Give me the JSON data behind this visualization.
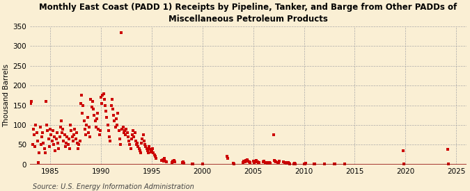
{
  "title": "Monthly East Coast (PADD 1) Receipts by Pipeline, Tanker, and Barge from Other PADDs of\nMiscellaneous Petroleum Products",
  "ylabel": "Thousand Barrels",
  "source": "Source: U.S. Energy Information Administration",
  "background_color": "#faefd4",
  "dot_color": "#cc0000",
  "xlim": [
    1983,
    2026
  ],
  "ylim": [
    0,
    350
  ],
  "yticks": [
    0,
    50,
    100,
    150,
    200,
    250,
    300,
    350
  ],
  "xticks": [
    1985,
    1990,
    1995,
    2000,
    2005,
    2010,
    2015,
    2020,
    2025
  ],
  "data": [
    [
      1983.08,
      155
    ],
    [
      1983.17,
      160
    ],
    [
      1983.25,
      50
    ],
    [
      1983.33,
      90
    ],
    [
      1983.42,
      75
    ],
    [
      1983.5,
      45
    ],
    [
      1983.58,
      100
    ],
    [
      1983.67,
      80
    ],
    [
      1983.75,
      60
    ],
    [
      1983.83,
      5
    ],
    [
      1983.92,
      30
    ],
    [
      1984.0,
      95
    ],
    [
      1984.08,
      50
    ],
    [
      1984.17,
      70
    ],
    [
      1984.25,
      80
    ],
    [
      1984.33,
      55
    ],
    [
      1984.42,
      40
    ],
    [
      1984.5,
      30
    ],
    [
      1984.58,
      160
    ],
    [
      1984.67,
      100
    ],
    [
      1984.75,
      85
    ],
    [
      1984.83,
      65
    ],
    [
      1984.92,
      45
    ],
    [
      1985.0,
      90
    ],
    [
      1985.08,
      75
    ],
    [
      1985.17,
      60
    ],
    [
      1985.25,
      85
    ],
    [
      1985.33,
      50
    ],
    [
      1985.42,
      70
    ],
    [
      1985.5,
      35
    ],
    [
      1985.58,
      65
    ],
    [
      1985.67,
      80
    ],
    [
      1985.75,
      55
    ],
    [
      1985.83,
      40
    ],
    [
      1985.92,
      70
    ],
    [
      1986.0,
      95
    ],
    [
      1986.08,
      110
    ],
    [
      1986.17,
      80
    ],
    [
      1986.25,
      90
    ],
    [
      1986.33,
      60
    ],
    [
      1986.42,
      75
    ],
    [
      1986.5,
      45
    ],
    [
      1986.58,
      55
    ],
    [
      1986.67,
      70
    ],
    [
      1986.75,
      50
    ],
    [
      1986.83,
      65
    ],
    [
      1986.92,
      40
    ],
    [
      1987.0,
      100
    ],
    [
      1987.08,
      85
    ],
    [
      1987.17,
      70
    ],
    [
      1987.25,
      60
    ],
    [
      1987.33,
      75
    ],
    [
      1987.42,
      90
    ],
    [
      1987.5,
      65
    ],
    [
      1987.58,
      80
    ],
    [
      1987.67,
      55
    ],
    [
      1987.75,
      40
    ],
    [
      1987.83,
      50
    ],
    [
      1987.92,
      60
    ],
    [
      1988.0,
      155
    ],
    [
      1988.08,
      175
    ],
    [
      1988.17,
      130
    ],
    [
      1988.25,
      150
    ],
    [
      1988.33,
      110
    ],
    [
      1988.42,
      90
    ],
    [
      1988.5,
      75
    ],
    [
      1988.58,
      100
    ],
    [
      1988.67,
      120
    ],
    [
      1988.75,
      80
    ],
    [
      1988.83,
      95
    ],
    [
      1988.92,
      70
    ],
    [
      1989.0,
      165
    ],
    [
      1989.08,
      145
    ],
    [
      1989.17,
      160
    ],
    [
      1989.25,
      140
    ],
    [
      1989.33,
      125
    ],
    [
      1989.42,
      110
    ],
    [
      1989.5,
      95
    ],
    [
      1989.58,
      115
    ],
    [
      1989.67,
      130
    ],
    [
      1989.75,
      90
    ],
    [
      1989.83,
      75
    ],
    [
      1989.92,
      85
    ],
    [
      1990.0,
      170
    ],
    [
      1990.08,
      155
    ],
    [
      1990.17,
      175
    ],
    [
      1990.25,
      180
    ],
    [
      1990.33,
      165
    ],
    [
      1990.42,
      150
    ],
    [
      1990.5,
      135
    ],
    [
      1990.58,
      120
    ],
    [
      1990.67,
      100
    ],
    [
      1990.75,
      85
    ],
    [
      1990.83,
      70
    ],
    [
      1990.92,
      60
    ],
    [
      1991.0,
      150
    ],
    [
      1991.08,
      165
    ],
    [
      1991.17,
      140
    ],
    [
      1991.25,
      125
    ],
    [
      1991.33,
      110
    ],
    [
      1991.42,
      95
    ],
    [
      1991.5,
      115
    ],
    [
      1991.58,
      100
    ],
    [
      1991.67,
      130
    ],
    [
      1991.75,
      85
    ],
    [
      1991.83,
      65
    ],
    [
      1991.92,
      50
    ],
    [
      1992.0,
      335
    ],
    [
      1992.08,
      90
    ],
    [
      1992.17,
      95
    ],
    [
      1992.25,
      80
    ],
    [
      1992.33,
      85
    ],
    [
      1992.42,
      75
    ],
    [
      1992.5,
      90
    ],
    [
      1992.58,
      80
    ],
    [
      1992.67,
      70
    ],
    [
      1992.75,
      60
    ],
    [
      1992.83,
      50
    ],
    [
      1992.92,
      40
    ],
    [
      1993.0,
      65
    ],
    [
      1993.08,
      75
    ],
    [
      1993.17,
      85
    ],
    [
      1993.25,
      70
    ],
    [
      1993.33,
      80
    ],
    [
      1993.42,
      60
    ],
    [
      1993.5,
      50
    ],
    [
      1993.58,
      55
    ],
    [
      1993.67,
      45
    ],
    [
      1993.75,
      40
    ],
    [
      1993.83,
      35
    ],
    [
      1993.92,
      30
    ],
    [
      1994.0,
      55
    ],
    [
      1994.08,
      65
    ],
    [
      1994.17,
      75
    ],
    [
      1994.25,
      60
    ],
    [
      1994.33,
      50
    ],
    [
      1994.42,
      45
    ],
    [
      1994.5,
      40
    ],
    [
      1994.58,
      35
    ],
    [
      1994.67,
      30
    ],
    [
      1994.75,
      45
    ],
    [
      1994.83,
      38
    ],
    [
      1994.92,
      32
    ],
    [
      1995.0,
      35
    ],
    [
      1995.08,
      40
    ],
    [
      1995.17,
      30
    ],
    [
      1995.25,
      25
    ],
    [
      1995.33,
      20
    ],
    [
      1995.42,
      15
    ],
    [
      1996.0,
      10
    ],
    [
      1996.08,
      12
    ],
    [
      1996.17,
      8
    ],
    [
      1996.25,
      15
    ],
    [
      1996.33,
      9
    ],
    [
      1996.42,
      7
    ],
    [
      1997.0,
      5
    ],
    [
      1997.08,
      8
    ],
    [
      1997.17,
      10
    ],
    [
      1997.25,
      6
    ],
    [
      1998.0,
      4
    ],
    [
      1998.08,
      6
    ],
    [
      1998.17,
      3
    ],
    [
      1999.0,
      2
    ],
    [
      1999.08,
      1
    ],
    [
      2000.0,
      1
    ],
    [
      2002.42,
      20
    ],
    [
      2002.5,
      15
    ],
    [
      2003.0,
      3
    ],
    [
      2003.08,
      2
    ],
    [
      2004.0,
      5
    ],
    [
      2004.08,
      8
    ],
    [
      2004.17,
      6
    ],
    [
      2004.25,
      10
    ],
    [
      2004.42,
      12
    ],
    [
      2004.5,
      8
    ],
    [
      2004.58,
      6
    ],
    [
      2004.67,
      5
    ],
    [
      2005.0,
      8
    ],
    [
      2005.08,
      5
    ],
    [
      2005.17,
      6
    ],
    [
      2005.25,
      8
    ],
    [
      2005.33,
      10
    ],
    [
      2005.42,
      7
    ],
    [
      2005.5,
      5
    ],
    [
      2005.58,
      4
    ],
    [
      2006.0,
      6
    ],
    [
      2006.08,
      8
    ],
    [
      2006.17,
      5
    ],
    [
      2006.25,
      4
    ],
    [
      2006.42,
      3
    ],
    [
      2006.5,
      5
    ],
    [
      2006.58,
      4
    ],
    [
      2006.67,
      3
    ],
    [
      2007.0,
      75
    ],
    [
      2007.08,
      10
    ],
    [
      2007.17,
      8
    ],
    [
      2007.25,
      6
    ],
    [
      2007.42,
      5
    ],
    [
      2007.5,
      4
    ],
    [
      2007.58,
      8
    ],
    [
      2008.0,
      6
    ],
    [
      2008.08,
      4
    ],
    [
      2008.17,
      5
    ],
    [
      2008.25,
      3
    ],
    [
      2008.42,
      4
    ],
    [
      2008.5,
      3
    ],
    [
      2008.58,
      2
    ],
    [
      2009.0,
      2
    ],
    [
      2009.08,
      3
    ],
    [
      2009.17,
      2
    ],
    [
      2010.0,
      2
    ],
    [
      2010.08,
      1
    ],
    [
      2010.17,
      3
    ],
    [
      2011.0,
      1
    ],
    [
      2011.08,
      2
    ],
    [
      2012.0,
      1
    ],
    [
      2013.0,
      1
    ],
    [
      2013.08,
      2
    ],
    [
      2014.0,
      1
    ],
    [
      2019.75,
      35
    ],
    [
      2019.83,
      1
    ],
    [
      2024.17,
      38
    ],
    [
      2024.25,
      1
    ]
  ]
}
